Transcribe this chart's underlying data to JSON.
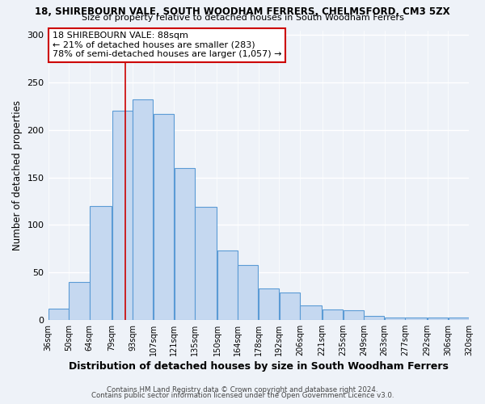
{
  "title_line1": "18, SHIREBOURN VALE, SOUTH WOODHAM FERRERS, CHELMSFORD, CM3 5ZX",
  "title_line2": "Size of property relative to detached houses in South Woodham Ferrers",
  "xlabel": "Distribution of detached houses by size in South Woodham Ferrers",
  "ylabel": "Number of detached properties",
  "categories": [
    "36sqm",
    "50sqm",
    "64sqm",
    "79sqm",
    "93sqm",
    "107sqm",
    "121sqm",
    "135sqm",
    "150sqm",
    "164sqm",
    "178sqm",
    "192sqm",
    "206sqm",
    "221sqm",
    "235sqm",
    "249sqm",
    "263sqm",
    "277sqm",
    "292sqm",
    "306sqm",
    "320sqm"
  ],
  "bar_left_edges": [
    36,
    50,
    64,
    79,
    93,
    107,
    121,
    135,
    150,
    164,
    178,
    192,
    206,
    221,
    235,
    249,
    263,
    277,
    292,
    306
  ],
  "bar_widths": [
    14,
    14,
    15,
    14,
    14,
    14,
    14,
    15,
    14,
    14,
    14,
    14,
    15,
    14,
    14,
    14,
    14,
    15,
    14,
    14
  ],
  "bar_heights": [
    12,
    40,
    120,
    220,
    232,
    217,
    160,
    119,
    73,
    58,
    33,
    29,
    15,
    11,
    10,
    4,
    2,
    2,
    2,
    2
  ],
  "bar_color": "#c5d8f0",
  "bar_edge_color": "#5b9bd5",
  "bar_edge_width": 0.8,
  "vline_x": 88,
  "vline_color": "#cc0000",
  "ylim": [
    0,
    305
  ],
  "yticks": [
    0,
    50,
    100,
    150,
    200,
    250,
    300
  ],
  "annotation_text": "18 SHIREBOURN VALE: 88sqm\n← 21% of detached houses are smaller (283)\n78% of semi-detached houses are larger (1,057) →",
  "annotation_box_color": "#ffffff",
  "annotation_box_edge": "#cc0000",
  "footer_line1": "Contains HM Land Registry data © Crown copyright and database right 2024.",
  "footer_line2": "Contains public sector information licensed under the Open Government Licence v3.0.",
  "bg_color": "#eef2f8"
}
